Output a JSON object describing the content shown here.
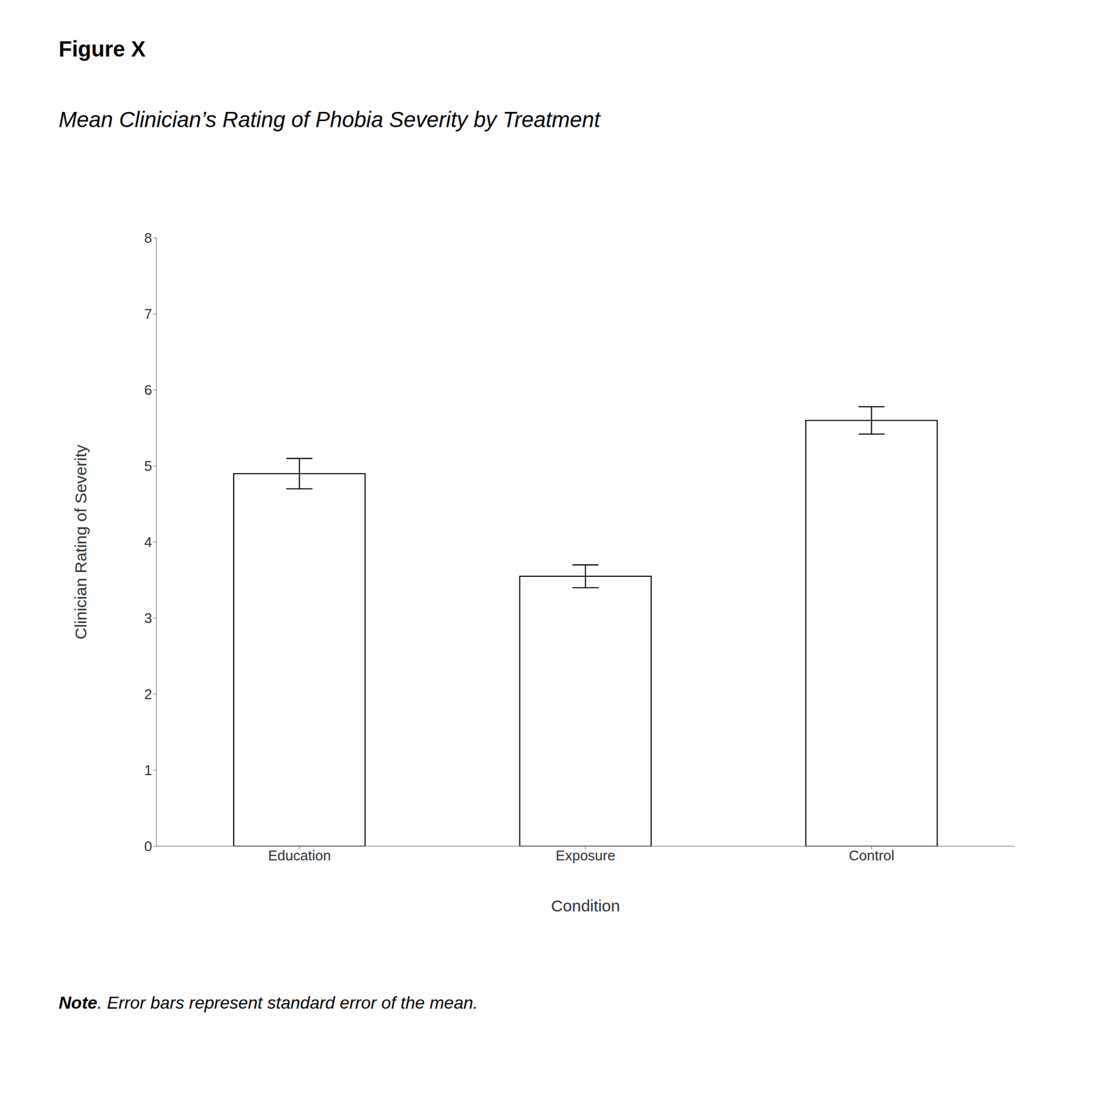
{
  "chart_data": {
    "type": "bar",
    "title": "Mean Clinician’s Rating of Phobia Severity by Treatment",
    "annotations": [
      "Figure X",
      "Note. Error bars represent standard error of the mean."
    ],
    "categories": [
      "Education",
      "Exposure",
      "Control"
    ],
    "values": [
      4.9,
      3.55,
      5.6
    ],
    "errors": [
      0.2,
      0.15,
      0.18
    ],
    "xlabel": "Condition",
    "ylabel": "Clinician Rating of Severity",
    "ylim": [
      0,
      8
    ],
    "yticks": [
      0,
      1,
      2,
      3,
      4,
      5,
      6,
      7,
      8
    ],
    "color": "#ffffff",
    "grid": false
  }
}
